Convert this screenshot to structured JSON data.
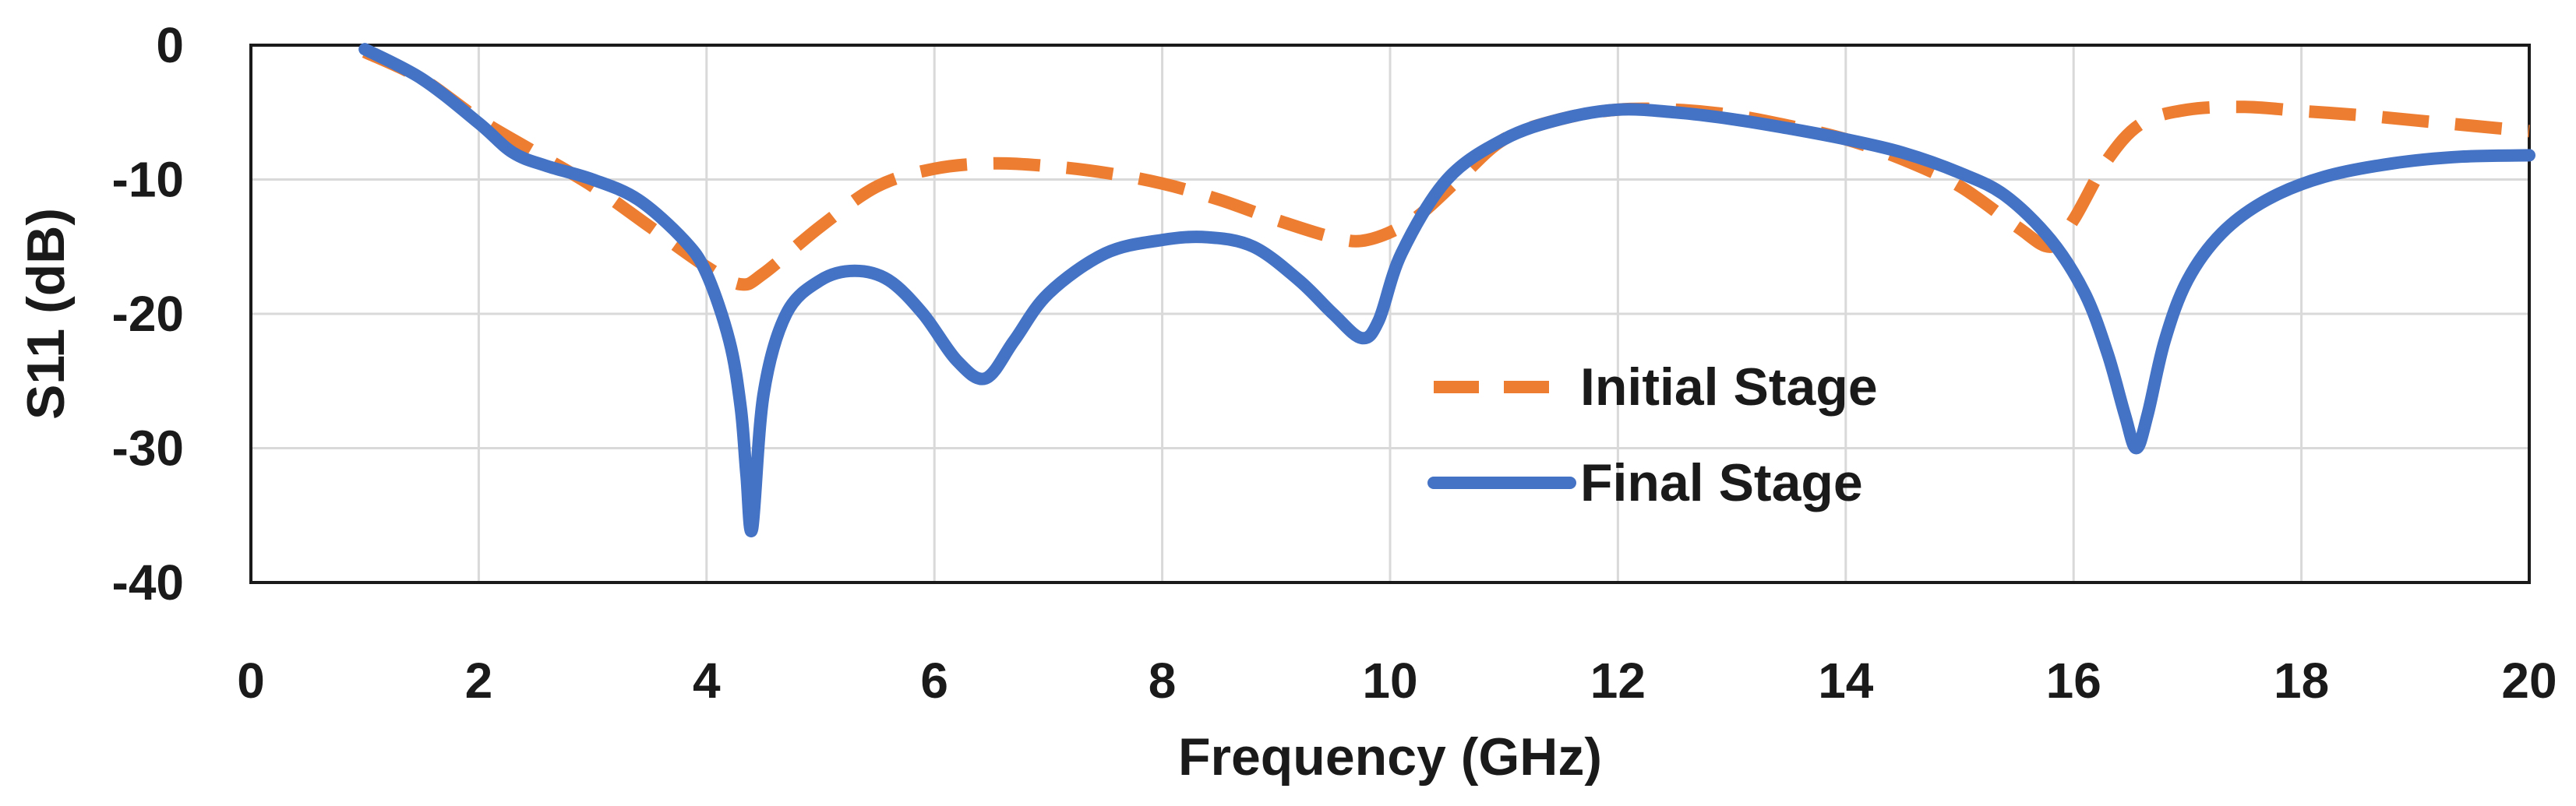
{
  "chart_data": {
    "type": "line",
    "title": "",
    "xlabel": "Frequency (GHz)",
    "ylabel": "S11 (dB)",
    "xlim": [
      0,
      20
    ],
    "ylim": [
      -40,
      0
    ],
    "xticks": [
      "0",
      "2",
      "4",
      "6",
      "8",
      "10",
      "12",
      "14",
      "16",
      "18",
      "20"
    ],
    "yticks": [
      "0",
      "-10",
      "-20",
      "-30",
      "-40"
    ],
    "grid": true,
    "legend_position": "center-right",
    "series": [
      {
        "name": "Initial Stage",
        "color": "#ED7D31",
        "style": "dashed",
        "x": [
          1.0,
          1.5,
          2.0,
          2.5,
          3.0,
          3.5,
          4.0,
          4.3,
          4.5,
          5.0,
          5.5,
          6.0,
          6.5,
          7.0,
          7.5,
          8.0,
          8.5,
          9.0,
          9.5,
          9.8,
          10.2,
          10.6,
          11.0,
          11.5,
          12.0,
          12.5,
          13.0,
          13.5,
          14.0,
          14.5,
          15.0,
          15.5,
          15.8,
          16.0,
          16.3,
          16.6,
          17.0,
          17.5,
          18.0,
          18.5,
          19.0,
          19.5,
          20.0
        ],
        "y": [
          -0.5,
          -2.5,
          -5.5,
          -8.0,
          -10.5,
          -13.5,
          -16.5,
          -17.8,
          -17.0,
          -13.5,
          -10.5,
          -9.2,
          -8.8,
          -9.0,
          -9.5,
          -10.3,
          -11.5,
          -13.0,
          -14.3,
          -14.5,
          -13.0,
          -10.0,
          -7.0,
          -5.5,
          -4.8,
          -4.8,
          -5.2,
          -6.0,
          -7.0,
          -8.5,
          -10.5,
          -13.5,
          -15.0,
          -13.0,
          -8.5,
          -5.8,
          -4.8,
          -4.6,
          -4.9,
          -5.2,
          -5.6,
          -6.0,
          -6.4
        ]
      },
      {
        "name": "Final Stage",
        "color": "#4472C4",
        "style": "solid",
        "x": [
          1.0,
          1.5,
          2.0,
          2.3,
          2.6,
          3.0,
          3.4,
          3.8,
          4.0,
          4.2,
          4.3,
          4.35,
          4.4,
          4.5,
          4.7,
          5.0,
          5.3,
          5.6,
          5.9,
          6.2,
          6.45,
          6.7,
          7.0,
          7.5,
          8.0,
          8.4,
          8.8,
          9.2,
          9.5,
          9.75,
          9.9,
          10.1,
          10.5,
          11.0,
          11.5,
          12.0,
          12.5,
          13.0,
          13.5,
          14.0,
          14.5,
          15.0,
          15.4,
          15.8,
          16.1,
          16.3,
          16.45,
          16.55,
          16.65,
          16.8,
          17.0,
          17.3,
          17.7,
          18.2,
          18.8,
          19.4,
          20.0
        ],
        "y": [
          -0.3,
          -2.5,
          -5.8,
          -8.0,
          -9.0,
          -10.0,
          -11.5,
          -14.5,
          -17.0,
          -22.0,
          -27.0,
          -32.0,
          -36.0,
          -26.0,
          -20.0,
          -17.5,
          -16.8,
          -17.5,
          -20.0,
          -23.5,
          -24.8,
          -22.0,
          -18.5,
          -15.5,
          -14.5,
          -14.3,
          -15.0,
          -17.5,
          -20.0,
          -21.8,
          -20.5,
          -15.5,
          -10.0,
          -7.0,
          -5.5,
          -4.8,
          -5.0,
          -5.5,
          -6.2,
          -7.0,
          -8.0,
          -9.5,
          -11.2,
          -14.5,
          -18.5,
          -23.0,
          -27.5,
          -30.0,
          -27.5,
          -22.0,
          -17.5,
          -14.0,
          -11.5,
          -9.8,
          -8.8,
          -8.3,
          -8.2
        ]
      }
    ]
  }
}
